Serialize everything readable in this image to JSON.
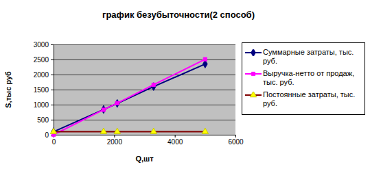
{
  "chart_data": {
    "type": "line",
    "title": "график безубыточности(2 способ)",
    "x_label": "Q,шт",
    "y_label": "S,тыс руб",
    "x": [
      0,
      1650,
      2100,
      3300,
      5000
    ],
    "series": [
      {
        "name": "Суммарные затраты, тыс. руб.",
        "color": "#000080",
        "marker": "diamond",
        "values": [
          100,
          840,
          1040,
          1600,
          2350
        ]
      },
      {
        "name": "Выручка-нетто от продаж, тыс. руб.",
        "color": "#ff00ff",
        "marker": "square",
        "values": [
          0,
          830,
          1050,
          1660,
          2510
        ]
      },
      {
        "name": "Постоянные затраты, тыс. руб.",
        "color": "#800000",
        "marker": "triangle",
        "values": [
          100,
          100,
          100,
          100,
          100
        ]
      }
    ],
    "xlim": [
      0,
      6000
    ],
    "xticks": [
      0,
      2000,
      4000,
      6000
    ],
    "ylim": [
      0,
      3000
    ],
    "yticks": [
      0,
      500,
      1000,
      1500,
      2000,
      2500,
      3000
    ],
    "grid": true,
    "legend": "right"
  }
}
